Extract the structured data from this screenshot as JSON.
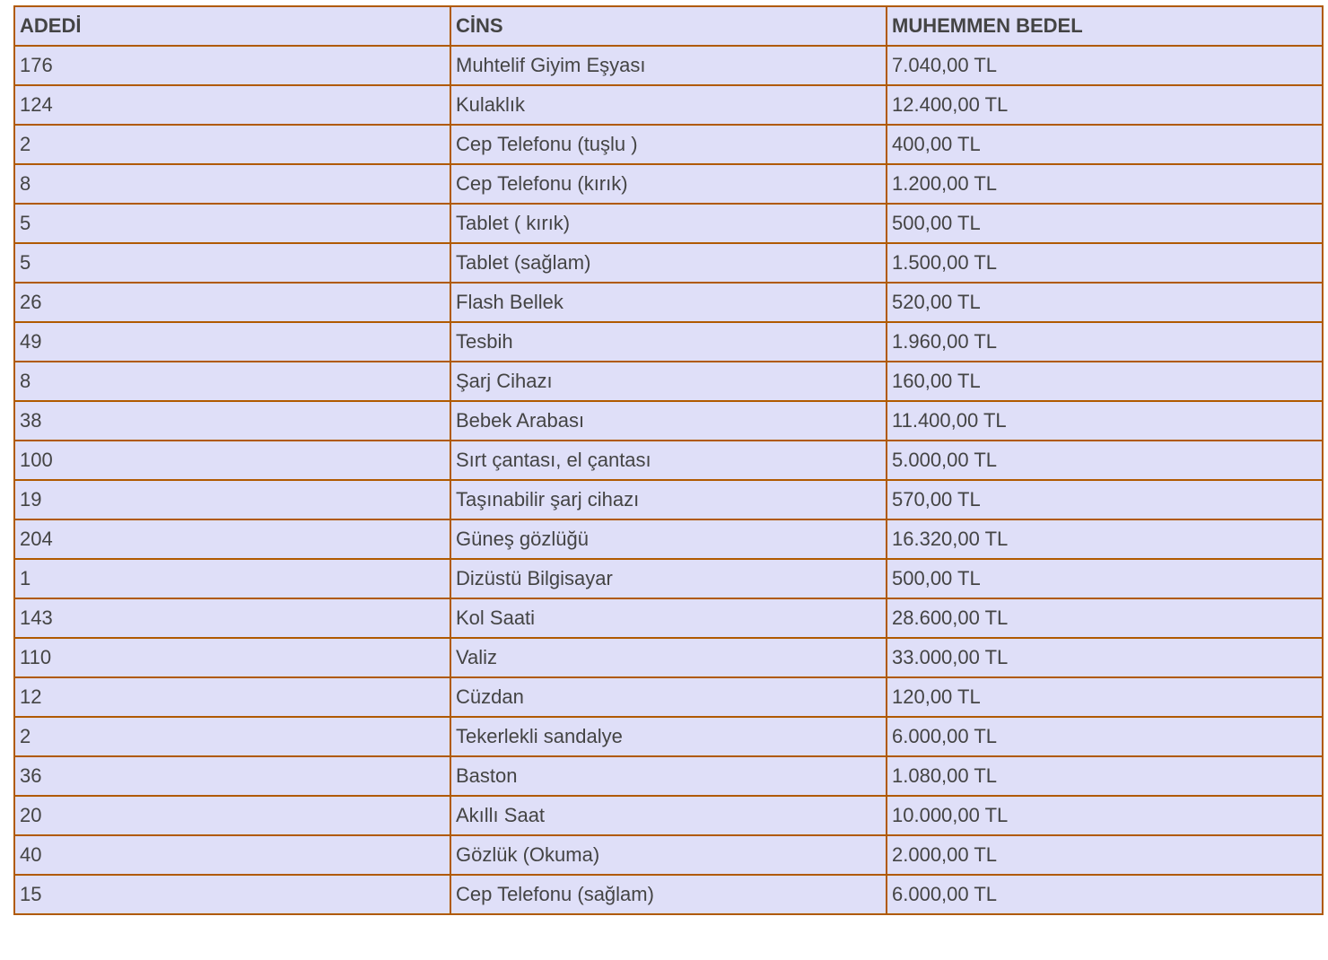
{
  "colors": {
    "cell_background": "#dfdff8",
    "border": "#b05a00",
    "text": "#444444"
  },
  "table": {
    "headers": [
      "ADEDİ",
      "CİNS",
      "MUHEMMEN BEDEL"
    ],
    "rows": [
      [
        "176",
        "Muhtelif Giyim Eşyası",
        "7.040,00 TL"
      ],
      [
        "124",
        "Kulaklık",
        "12.400,00 TL"
      ],
      [
        "2",
        "Cep Telefonu (tuşlu )",
        "400,00 TL"
      ],
      [
        "8",
        "Cep Telefonu (kırık)",
        "1.200,00 TL"
      ],
      [
        "5",
        "Tablet  ( kırık)",
        "500,00 TL"
      ],
      [
        "5",
        "Tablet (sağlam)",
        "1.500,00 TL"
      ],
      [
        "26",
        "Flash Bellek",
        "520,00 TL"
      ],
      [
        "49",
        "Tesbih",
        "1.960,00 TL"
      ],
      [
        "8",
        "Şarj Cihazı",
        "160,00 TL"
      ],
      [
        "38",
        "Bebek Arabası",
        "11.400,00 TL"
      ],
      [
        "100",
        "Sırt çantası, el çantası",
        "5.000,00 TL"
      ],
      [
        "19",
        "Taşınabilir şarj cihazı",
        "570,00 TL"
      ],
      [
        "204",
        "Güneş gözlüğü",
        "16.320,00 TL"
      ],
      [
        "1",
        "Dizüstü Bilgisayar",
        "500,00 TL"
      ],
      [
        "143",
        "Kol Saati",
        "28.600,00 TL"
      ],
      [
        "110",
        "Valiz",
        "33.000,00 TL"
      ],
      [
        "12",
        "Cüzdan",
        "120,00 TL"
      ],
      [
        "2",
        "Tekerlekli sandalye",
        "6.000,00 TL"
      ],
      [
        "36",
        "Baston",
        "1.080,00 TL"
      ],
      [
        "20",
        "Akıllı Saat",
        "10.000,00 TL"
      ],
      [
        "40",
        "Gözlük (Okuma)",
        "2.000,00 TL"
      ],
      [
        "15",
        "Cep Telefonu (sağlam)",
        "6.000,00 TL"
      ]
    ]
  }
}
